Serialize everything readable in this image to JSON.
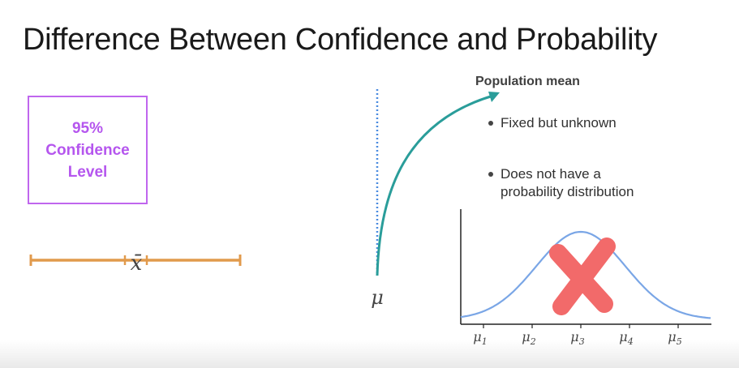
{
  "title": "Difference Between Confidence and Probability",
  "confidence_box": {
    "line1": "95%",
    "line2": "Confidence",
    "line3": "Level"
  },
  "interval": {
    "label": "x̄"
  },
  "population": {
    "title": "Population mean",
    "bullets": [
      "Fixed but unknown",
      "Does not have a probability distribution"
    ],
    "bullet2_lines": [
      "Does not have a",
      "probability distribution"
    ],
    "mu_label": "μ"
  },
  "distribution_chart": {
    "x_ticks": [
      "μ1",
      "μ2",
      "μ3",
      "μ4",
      "μ5"
    ],
    "crossed_out": true
  },
  "colors": {
    "box_accent": "#c066ee",
    "interval": "#e19a4c",
    "arrow": "#2a9d9a",
    "curve": "#7aa6e6",
    "cross": "#f26a6a",
    "dotted_line": "#4a8be0"
  }
}
